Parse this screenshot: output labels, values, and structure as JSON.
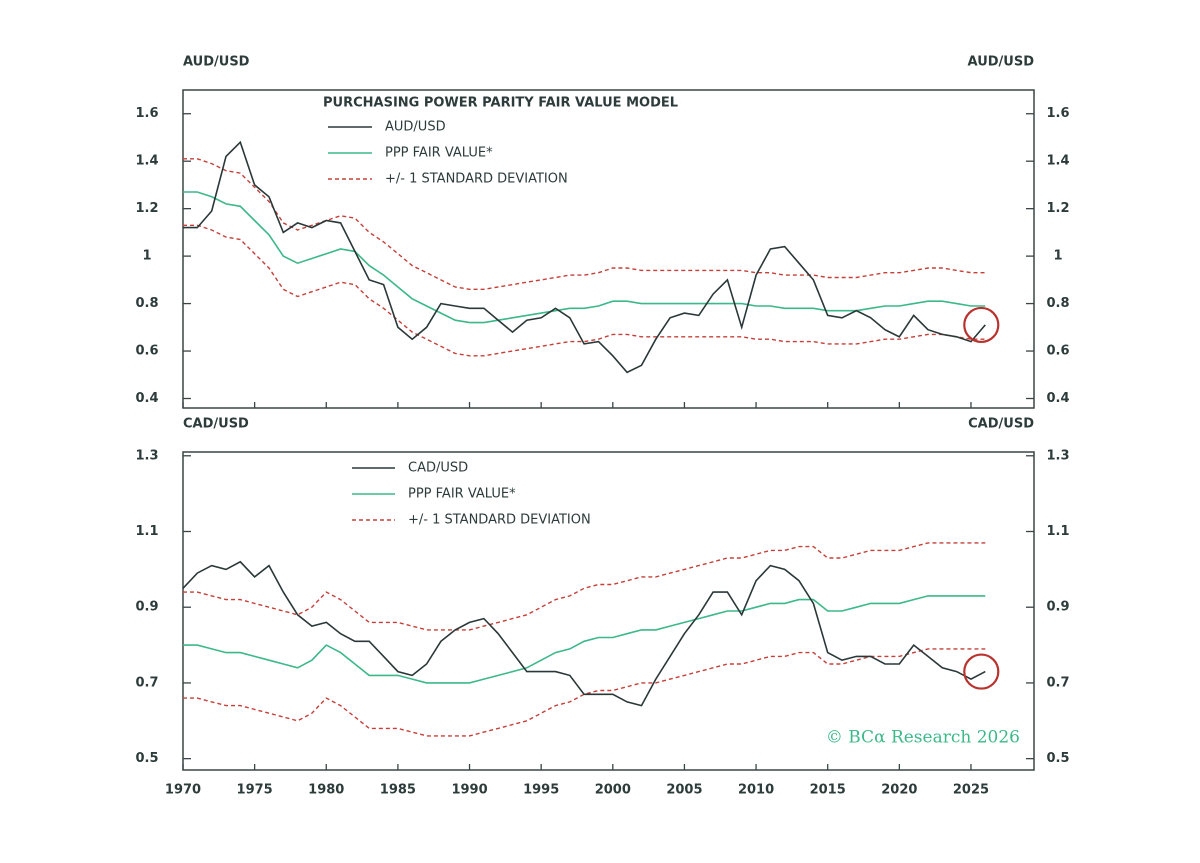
{
  "chart_data": [
    {
      "type": "line",
      "title": "PURCHASING POWER PARITY FAIR VALUE MODEL",
      "y_label": "AUD/USD",
      "y2_label": "AUD/USD",
      "xlim": [
        1970,
        2029.4
      ],
      "xticks": [
        1970,
        1975,
        1980,
        1985,
        1990,
        1995,
        2000,
        2005,
        2010,
        2015,
        2020,
        2025
      ],
      "ylim": [
        0.36,
        1.7
      ],
      "yticks": [
        0.4,
        0.6,
        0.8,
        1.0,
        1.2,
        1.4,
        1.6
      ],
      "x": [
        1970,
        1971,
        1972,
        1973,
        1974,
        1975,
        1976,
        1977,
        1978,
        1979,
        1980,
        1981,
        1982,
        1983,
        1984,
        1985,
        1986,
        1987,
        1988,
        1989,
        1990,
        1991,
        1992,
        1993,
        1994,
        1995,
        1996,
        1997,
        1998,
        1999,
        2000,
        2001,
        2002,
        2003,
        2004,
        2005,
        2006,
        2007,
        2008,
        2009,
        2010,
        2011,
        2012,
        2013,
        2014,
        2015,
        2016,
        2017,
        2018,
        2019,
        2020,
        2021,
        2022,
        2023,
        2024,
        2025,
        2026
      ],
      "series": [
        {
          "name": "AUD/USD",
          "color": "#2b3838",
          "dash": false,
          "values": [
            1.12,
            1.12,
            1.19,
            1.42,
            1.48,
            1.3,
            1.25,
            1.1,
            1.14,
            1.12,
            1.15,
            1.14,
            1.02,
            0.9,
            0.88,
            0.7,
            0.65,
            0.7,
            0.8,
            0.79,
            0.78,
            0.78,
            0.73,
            0.68,
            0.73,
            0.74,
            0.78,
            0.74,
            0.63,
            0.64,
            0.58,
            0.51,
            0.54,
            0.65,
            0.74,
            0.76,
            0.75,
            0.84,
            0.9,
            0.7,
            0.92,
            1.03,
            1.04,
            0.97,
            0.9,
            0.75,
            0.74,
            0.77,
            0.74,
            0.69,
            0.66,
            0.75,
            0.69,
            0.67,
            0.66,
            0.64,
            0.71
          ]
        },
        {
          "name": "PPP FAIR VALUE*",
          "color": "#3cb88a",
          "dash": false,
          "values": [
            1.27,
            1.27,
            1.25,
            1.22,
            1.21,
            1.15,
            1.09,
            1.0,
            0.97,
            0.99,
            1.01,
            1.03,
            1.02,
            0.96,
            0.92,
            0.87,
            0.82,
            0.79,
            0.76,
            0.73,
            0.72,
            0.72,
            0.73,
            0.74,
            0.75,
            0.76,
            0.77,
            0.78,
            0.78,
            0.79,
            0.81,
            0.81,
            0.8,
            0.8,
            0.8,
            0.8,
            0.8,
            0.8,
            0.8,
            0.8,
            0.79,
            0.79,
            0.78,
            0.78,
            0.78,
            0.77,
            0.77,
            0.77,
            0.78,
            0.79,
            0.79,
            0.8,
            0.81,
            0.81,
            0.8,
            0.79,
            0.79
          ]
        },
        {
          "name": "+/- 1 STANDARD DEVIATION",
          "color": "#c4403a",
          "dash": true,
          "values": [
            1.41,
            1.41,
            1.39,
            1.36,
            1.35,
            1.29,
            1.23,
            1.14,
            1.11,
            1.13,
            1.15,
            1.17,
            1.16,
            1.1,
            1.06,
            1.01,
            0.96,
            0.93,
            0.9,
            0.87,
            0.86,
            0.86,
            0.87,
            0.88,
            0.89,
            0.9,
            0.91,
            0.92,
            0.92,
            0.93,
            0.95,
            0.95,
            0.94,
            0.94,
            0.94,
            0.94,
            0.94,
            0.94,
            0.94,
            0.94,
            0.93,
            0.93,
            0.92,
            0.92,
            0.92,
            0.91,
            0.91,
            0.91,
            0.92,
            0.93,
            0.93,
            0.94,
            0.95,
            0.95,
            0.94,
            0.93,
            0.93
          ]
        },
        {
          "color": "#c4403a",
          "dash": true,
          "values": [
            1.13,
            1.13,
            1.11,
            1.08,
            1.07,
            1.01,
            0.95,
            0.86,
            0.83,
            0.85,
            0.87,
            0.89,
            0.88,
            0.82,
            0.78,
            0.73,
            0.68,
            0.65,
            0.62,
            0.59,
            0.58,
            0.58,
            0.59,
            0.6,
            0.61,
            0.62,
            0.63,
            0.64,
            0.64,
            0.65,
            0.67,
            0.67,
            0.66,
            0.66,
            0.66,
            0.66,
            0.66,
            0.66,
            0.66,
            0.66,
            0.65,
            0.65,
            0.64,
            0.64,
            0.64,
            0.63,
            0.63,
            0.63,
            0.64,
            0.65,
            0.65,
            0.66,
            0.67,
            0.67,
            0.66,
            0.65,
            0.65
          ]
        }
      ]
    },
    {
      "type": "line",
      "y_label": "CAD/USD",
      "y2_label": "CAD/USD",
      "annotation": "© BCα Research 2026",
      "xlim": [
        1970,
        2029.4
      ],
      "xticks": [
        1970,
        1975,
        1980,
        1985,
        1990,
        1995,
        2000,
        2005,
        2010,
        2015,
        2020,
        2025
      ],
      "ylim": [
        0.47,
        1.31
      ],
      "yticks": [
        0.5,
        0.7,
        0.9,
        1.1,
        1.3
      ],
      "x": [
        1970,
        1971,
        1972,
        1973,
        1974,
        1975,
        1976,
        1977,
        1978,
        1979,
        1980,
        1981,
        1982,
        1983,
        1984,
        1985,
        1986,
        1987,
        1988,
        1989,
        1990,
        1991,
        1992,
        1993,
        1994,
        1995,
        1996,
        1997,
        1998,
        1999,
        2000,
        2001,
        2002,
        2003,
        2004,
        2005,
        2006,
        2007,
        2008,
        2009,
        2010,
        2011,
        2012,
        2013,
        2014,
        2015,
        2016,
        2017,
        2018,
        2019,
        2020,
        2021,
        2022,
        2023,
        2024,
        2025,
        2026
      ],
      "series": [
        {
          "name": "CAD/USD",
          "color": "#2b3838",
          "dash": false,
          "values": [
            0.95,
            0.99,
            1.01,
            1.0,
            1.02,
            0.98,
            1.01,
            0.94,
            0.88,
            0.85,
            0.86,
            0.83,
            0.81,
            0.81,
            0.77,
            0.73,
            0.72,
            0.75,
            0.81,
            0.84,
            0.86,
            0.87,
            0.83,
            0.78,
            0.73,
            0.73,
            0.73,
            0.72,
            0.67,
            0.67,
            0.67,
            0.65,
            0.64,
            0.71,
            0.77,
            0.83,
            0.88,
            0.94,
            0.94,
            0.88,
            0.97,
            1.01,
            1.0,
            0.97,
            0.91,
            0.78,
            0.76,
            0.77,
            0.77,
            0.75,
            0.75,
            0.8,
            0.77,
            0.74,
            0.73,
            0.71,
            0.73
          ]
        },
        {
          "name": "PPP FAIR VALUE*",
          "color": "#3cb88a",
          "dash": false,
          "values": [
            0.8,
            0.8,
            0.79,
            0.78,
            0.78,
            0.77,
            0.76,
            0.75,
            0.74,
            0.76,
            0.8,
            0.78,
            0.75,
            0.72,
            0.72,
            0.72,
            0.71,
            0.7,
            0.7,
            0.7,
            0.7,
            0.71,
            0.72,
            0.73,
            0.74,
            0.76,
            0.78,
            0.79,
            0.81,
            0.82,
            0.82,
            0.83,
            0.84,
            0.84,
            0.85,
            0.86,
            0.87,
            0.88,
            0.89,
            0.89,
            0.9,
            0.91,
            0.91,
            0.92,
            0.92,
            0.89,
            0.89,
            0.9,
            0.91,
            0.91,
            0.91,
            0.92,
            0.93,
            0.93,
            0.93,
            0.93,
            0.93
          ]
        },
        {
          "name": "+/- 1 STANDARD DEVIATION",
          "color": "#c4403a",
          "dash": true,
          "values": [
            0.94,
            0.94,
            0.93,
            0.92,
            0.92,
            0.91,
            0.9,
            0.89,
            0.88,
            0.9,
            0.94,
            0.92,
            0.89,
            0.86,
            0.86,
            0.86,
            0.85,
            0.84,
            0.84,
            0.84,
            0.84,
            0.85,
            0.86,
            0.87,
            0.88,
            0.9,
            0.92,
            0.93,
            0.95,
            0.96,
            0.96,
            0.97,
            0.98,
            0.98,
            0.99,
            1.0,
            1.01,
            1.02,
            1.03,
            1.03,
            1.04,
            1.05,
            1.05,
            1.06,
            1.06,
            1.03,
            1.03,
            1.04,
            1.05,
            1.05,
            1.05,
            1.06,
            1.07,
            1.07,
            1.07,
            1.07,
            1.07
          ]
        },
        {
          "color": "#c4403a",
          "dash": true,
          "values": [
            0.66,
            0.66,
            0.65,
            0.64,
            0.64,
            0.63,
            0.62,
            0.61,
            0.6,
            0.62,
            0.66,
            0.64,
            0.61,
            0.58,
            0.58,
            0.58,
            0.57,
            0.56,
            0.56,
            0.56,
            0.56,
            0.57,
            0.58,
            0.59,
            0.6,
            0.62,
            0.64,
            0.65,
            0.67,
            0.68,
            0.68,
            0.69,
            0.7,
            0.7,
            0.71,
            0.72,
            0.73,
            0.74,
            0.75,
            0.75,
            0.76,
            0.77,
            0.77,
            0.78,
            0.78,
            0.75,
            0.75,
            0.76,
            0.77,
            0.77,
            0.77,
            0.78,
            0.79,
            0.79,
            0.79,
            0.79,
            0.79
          ]
        }
      ]
    }
  ]
}
